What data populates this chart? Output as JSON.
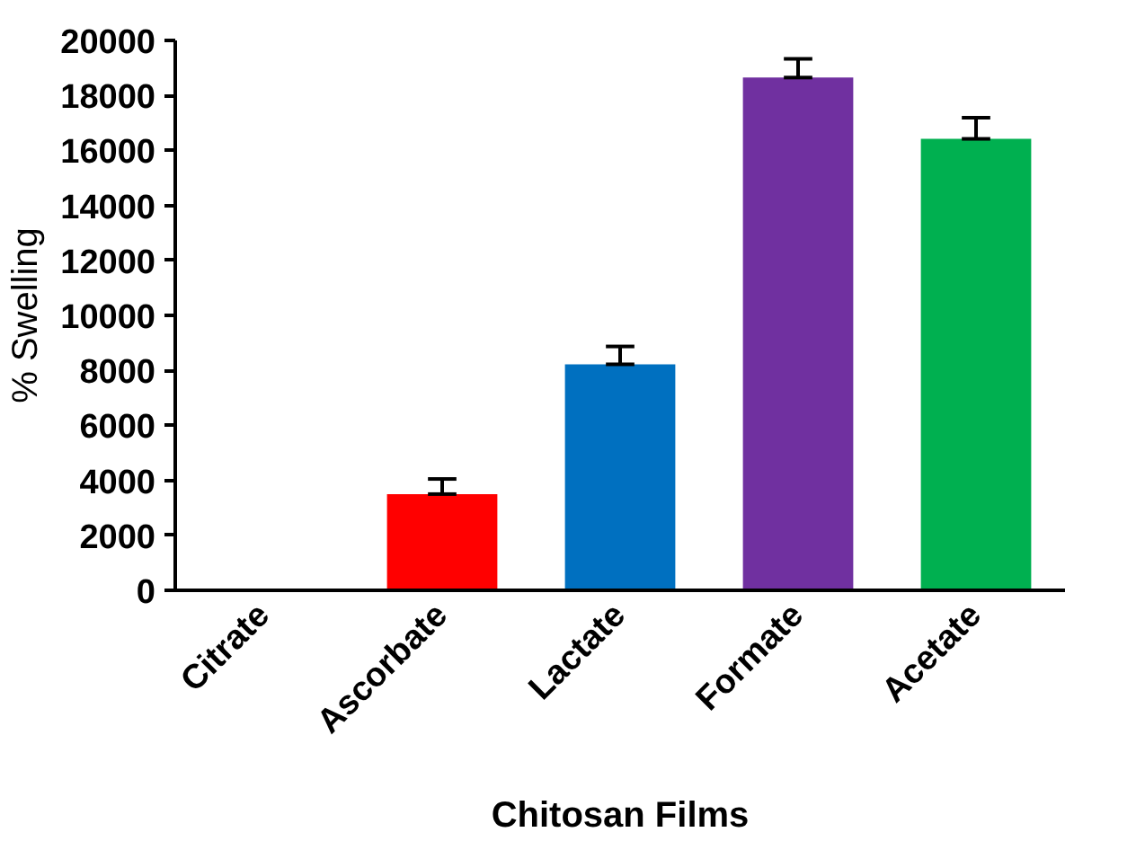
{
  "chart_data": {
    "type": "bar",
    "xlabel": "Chitosan Films",
    "ylabel": "% Swelling",
    "categories": [
      "Citrate",
      "Ascorbate",
      "Lactate",
      "Formate",
      "Acetate"
    ],
    "values": [
      0,
      3500,
      8220,
      18650,
      16420
    ],
    "colors": [
      "#c00000",
      "#ff0000",
      "#0070c0",
      "#7030a0",
      "#00b050"
    ],
    "errors": [
      null,
      [
        3500,
        4050
      ],
      [
        8220,
        8870
      ],
      [
        18650,
        19330
      ],
      [
        16420,
        17190
      ]
    ],
    "ylim": [
      0,
      20000
    ],
    "yticks": [
      0,
      2000,
      4000,
      6000,
      8000,
      10000,
      12000,
      14000,
      16000,
      18000,
      20000
    ],
    "grid": false
  }
}
